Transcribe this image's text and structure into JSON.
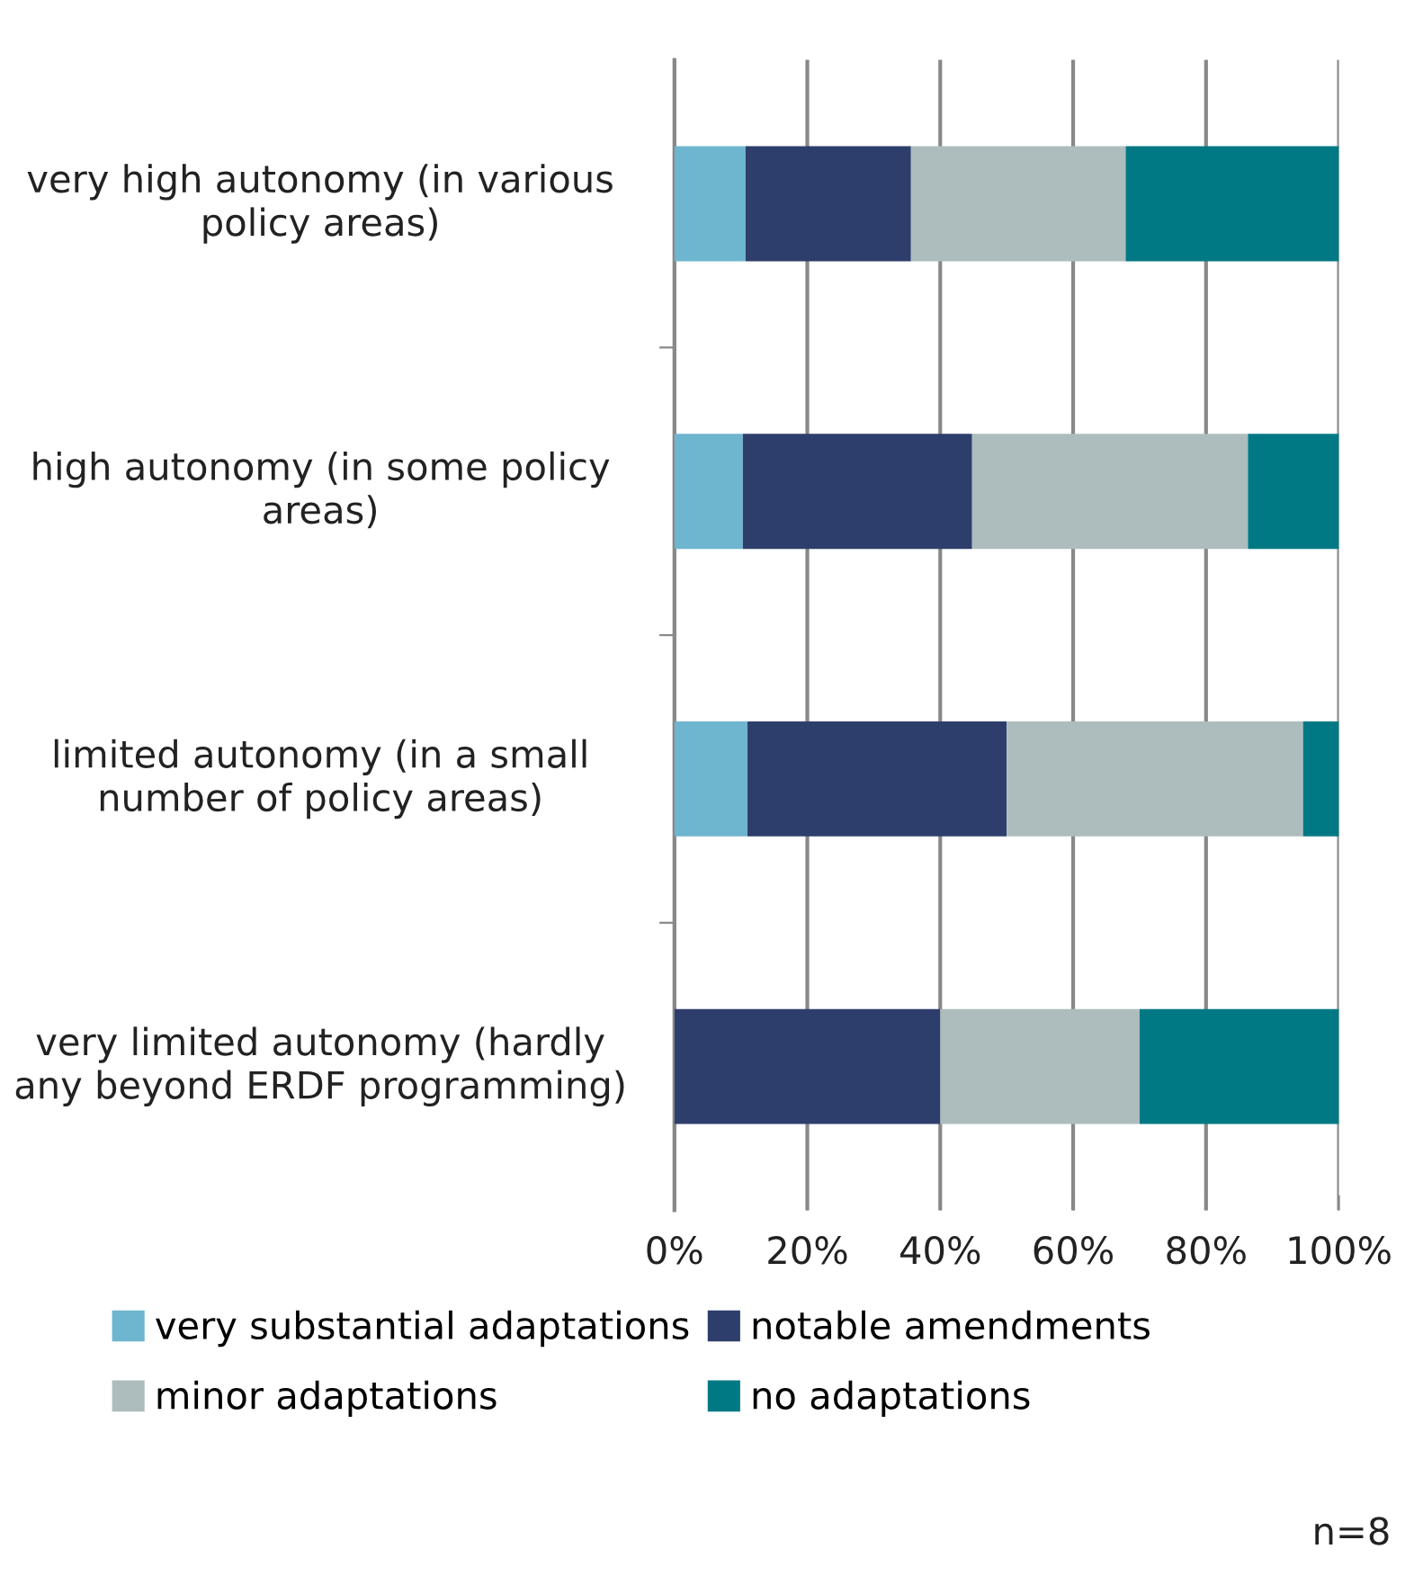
{
  "chart_data": {
    "type": "bar",
    "orientation": "horizontal",
    "stacked": true,
    "categories": [
      "very high autonomy (in various policy areas)",
      "high autonomy (in some policy areas)",
      "limited autonomy (in a small number of policy areas)",
      "very limited autonomy (hardly any beyond ERDF programming)"
    ],
    "series": [
      {
        "name": "very substantial adaptations",
        "color": "#6eb5cf",
        "values": [
          10.7,
          10.3,
          11.0,
          0
        ]
      },
      {
        "name": "notable amendments",
        "color": "#2e3e6c",
        "values": [
          24.9,
          34.5,
          39.0,
          40.0
        ]
      },
      {
        "name": "minor adaptations",
        "color": "#adbdbd",
        "values": [
          32.3,
          41.5,
          44.6,
          30.0
        ]
      },
      {
        "name": "no adaptations",
        "color": "#007984",
        "values": [
          32.1,
          13.7,
          5.4,
          30.0
        ]
      }
    ],
    "xlim": [
      0,
      100
    ],
    "xticks": [
      {
        "value": 0,
        "label": "0%"
      },
      {
        "value": 20,
        "label": "20%"
      },
      {
        "value": 40,
        "label": "40%"
      },
      {
        "value": 60,
        "label": "60%"
      },
      {
        "value": 80,
        "label": "80%"
      },
      {
        "value": 100,
        "label": "100%"
      }
    ],
    "grid": "x",
    "legend": "bottom",
    "annotations": [
      "n=8"
    ]
  }
}
